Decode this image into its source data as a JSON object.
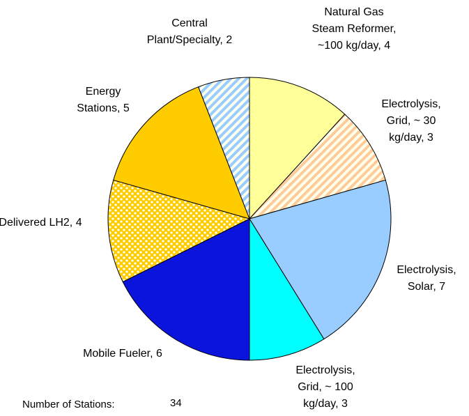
{
  "chart_data": {
    "type": "pie",
    "categories": [
      "Natural Gas Steam Reformer, ~100 kg/day,",
      "Electrolysis, Grid, ~ 30 kg/day,",
      "Electrolysis, Solar,",
      "Electrolysis, Grid, ~ 100 kg/day,",
      "Mobile Fueler,",
      "Delivered LH2,",
      "Energy Stations,",
      "Central Plant/Specialty,"
    ],
    "values": [
      4,
      3,
      7,
      3,
      6,
      4,
      5,
      2
    ],
    "colors": [
      "#ffff99",
      "#ffcc99",
      "#99ccff",
      "#00ffff",
      "#0a14dc",
      "#ffcc00",
      "#ffcc00",
      "#99ccff"
    ],
    "patterns": [
      "solid",
      "stripes",
      "solid",
      "solid",
      "solid",
      "dots",
      "solid",
      "stripes"
    ],
    "total_label": "Number of Stations:",
    "total": 34
  }
}
